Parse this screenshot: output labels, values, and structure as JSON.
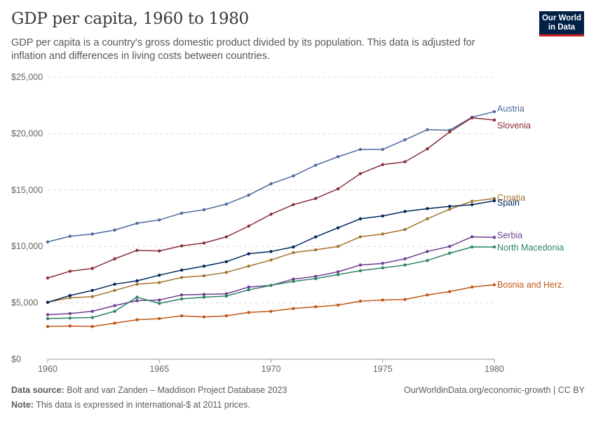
{
  "header": {
    "title": "GDP per capita, 1960 to 1980",
    "subtitle": "GDP per capita is a country's gross domestic product divided by its population. This data is adjusted for inflation and differences in living costs between countries.",
    "logo_line1": "Our World",
    "logo_line2": "in Data"
  },
  "footer": {
    "source_label": "Data source:",
    "source_text": "Bolt and van Zanden – Maddison Project Database 2023",
    "note_label": "Note:",
    "note_text": "This data is expressed in international-$ at 2011 prices.",
    "url_text": "OurWorldinData.org/economic-growth | CC BY"
  },
  "chart_data": {
    "type": "line",
    "title": "GDP per capita, 1960 to 1980",
    "xlim": [
      1960,
      1980
    ],
    "ylim": [
      0,
      25000
    ],
    "x_ticks": [
      1960,
      1965,
      1970,
      1975,
      1980
    ],
    "y_ticks": [
      0,
      5000,
      10000,
      15000,
      20000,
      25000
    ],
    "y_tick_labels": [
      "$0",
      "$5,000",
      "$10,000",
      "$15,000",
      "$20,000",
      "$25,000"
    ],
    "grid": "horizontal dashed",
    "legend": "right (end labels)",
    "x": [
      1960,
      1961,
      1962,
      1963,
      1964,
      1965,
      1966,
      1967,
      1968,
      1969,
      1970,
      1971,
      1972,
      1973,
      1974,
      1975,
      1976,
      1977,
      1978,
      1979,
      1980
    ],
    "series": [
      {
        "name": "Austria",
        "color": "#4c6a9c",
        "values": [
          10400,
          10900,
          11100,
          11450,
          12050,
          12350,
          12950,
          13250,
          13750,
          14550,
          15550,
          16250,
          17200,
          17950,
          18600,
          18600,
          19450,
          20350,
          20300,
          21450,
          21950
        ]
      },
      {
        "name": "Slovenia",
        "color": "#883039",
        "values": [
          7200,
          7800,
          8050,
          8900,
          9650,
          9600,
          10050,
          10300,
          10850,
          11800,
          12850,
          13700,
          14250,
          15100,
          16450,
          17250,
          17500,
          18650,
          20150,
          21400,
          21200
        ]
      },
      {
        "name": "Croatia",
        "color": "#a2752f",
        "values": [
          5050,
          5450,
          5550,
          6100,
          6650,
          6800,
          7250,
          7400,
          7700,
          8250,
          8800,
          9450,
          9700,
          10000,
          10850,
          11100,
          11500,
          12450,
          13300,
          14000,
          14250
        ]
      },
      {
        "name": "Spain",
        "color": "#00295b",
        "values": [
          5050,
          5650,
          6100,
          6650,
          6950,
          7450,
          7900,
          8250,
          8650,
          9350,
          9550,
          9950,
          10850,
          11650,
          12450,
          12700,
          13100,
          13350,
          13550,
          13700,
          14050
        ]
      },
      {
        "name": "Serbia",
        "color": "#6d3e91",
        "values": [
          3950,
          4050,
          4250,
          4750,
          5200,
          5250,
          5700,
          5750,
          5800,
          6400,
          6550,
          7100,
          7350,
          7750,
          8350,
          8500,
          8900,
          9550,
          10000,
          10850,
          10800
        ]
      },
      {
        "name": "North Macedonia",
        "color": "#2c8465",
        "values": [
          3600,
          3650,
          3700,
          4250,
          5500,
          4950,
          5350,
          5500,
          5600,
          6150,
          6550,
          6900,
          7150,
          7500,
          7850,
          8100,
          8350,
          8750,
          9400,
          9950,
          9950
        ]
      },
      {
        "name": "Bosnia and Herz.",
        "color": "#be5915",
        "values": [
          2900,
          2950,
          2900,
          3200,
          3500,
          3600,
          3850,
          3750,
          3850,
          4150,
          4250,
          4500,
          4650,
          4800,
          5150,
          5250,
          5300,
          5700,
          6000,
          6400,
          6600
        ]
      }
    ]
  }
}
